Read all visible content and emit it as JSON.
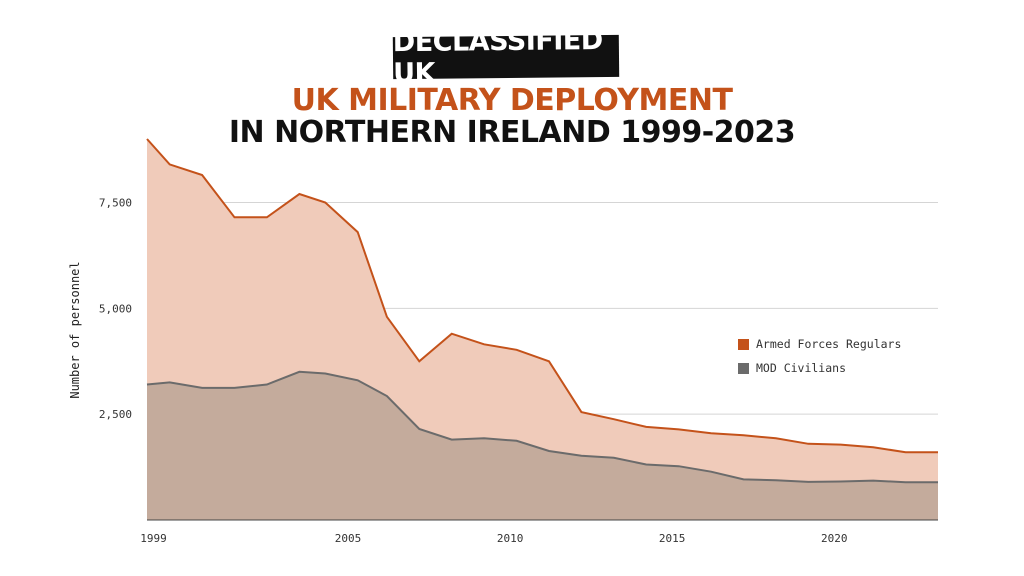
{
  "brand": {
    "label": "DECLASSIFIED UK"
  },
  "title": {
    "line1": "UK MILITARY DEPLOYMENT",
    "line2": "IN NORTHERN IRELAND 1999-2023"
  },
  "colors": {
    "accent": "#c4521a",
    "armed_fill": "#f0cbba",
    "armed_line": "#c4521a",
    "civ_fill": "#c4ab9c",
    "civ_line": "#6b6b6b",
    "grid": "#d5d5d5"
  },
  "chart_data": {
    "type": "area",
    "title": "UK MILITARY DEPLOYMENT IN NORTHERN IRELAND 1999-2023",
    "xlabel": "",
    "ylabel": "Number of personnel",
    "xlim": [
      1998.8,
      2023.2
    ],
    "ylim": [
      0,
      9000
    ],
    "x_ticks": [
      1999,
      2005,
      2010,
      2015,
      2020
    ],
    "x_tick_labels": [
      "1999",
      "2005",
      "2010",
      "2015",
      "2020"
    ],
    "y_ticks": [
      2500,
      5000,
      7500
    ],
    "y_tick_labels": [
      "2,500",
      "5,000",
      "7,500"
    ],
    "grid": true,
    "legend_position": "right",
    "x": [
      1998.8,
      1999.5,
      2000.5,
      2001.5,
      2002.5,
      2003.5,
      2004.3,
      2005.3,
      2006.2,
      2007.2,
      2008.2,
      2009.2,
      2010.2,
      2011.2,
      2012.2,
      2013.2,
      2014.2,
      2015.2,
      2016.2,
      2017.2,
      2018.2,
      2019.2,
      2020.2,
      2021.2,
      2022.2,
      2023.2
    ],
    "series": [
      {
        "name": "Armed Forces Regulars",
        "values": [
          9000,
          8400,
          8150,
          7150,
          7150,
          7700,
          7500,
          6800,
          4800,
          3750,
          4400,
          4150,
          4020,
          3750,
          2550,
          2380,
          2200,
          2140,
          2050,
          2000,
          1930,
          1800,
          1780,
          1720,
          1600,
          1600
        ]
      },
      {
        "name": "MOD Civilians",
        "values": [
          3200,
          3250,
          3120,
          3120,
          3200,
          3500,
          3460,
          3300,
          2930,
          2150,
          1900,
          1930,
          1870,
          1630,
          1520,
          1470,
          1310,
          1270,
          1140,
          960,
          940,
          900,
          910,
          930,
          890,
          890
        ]
      }
    ]
  }
}
